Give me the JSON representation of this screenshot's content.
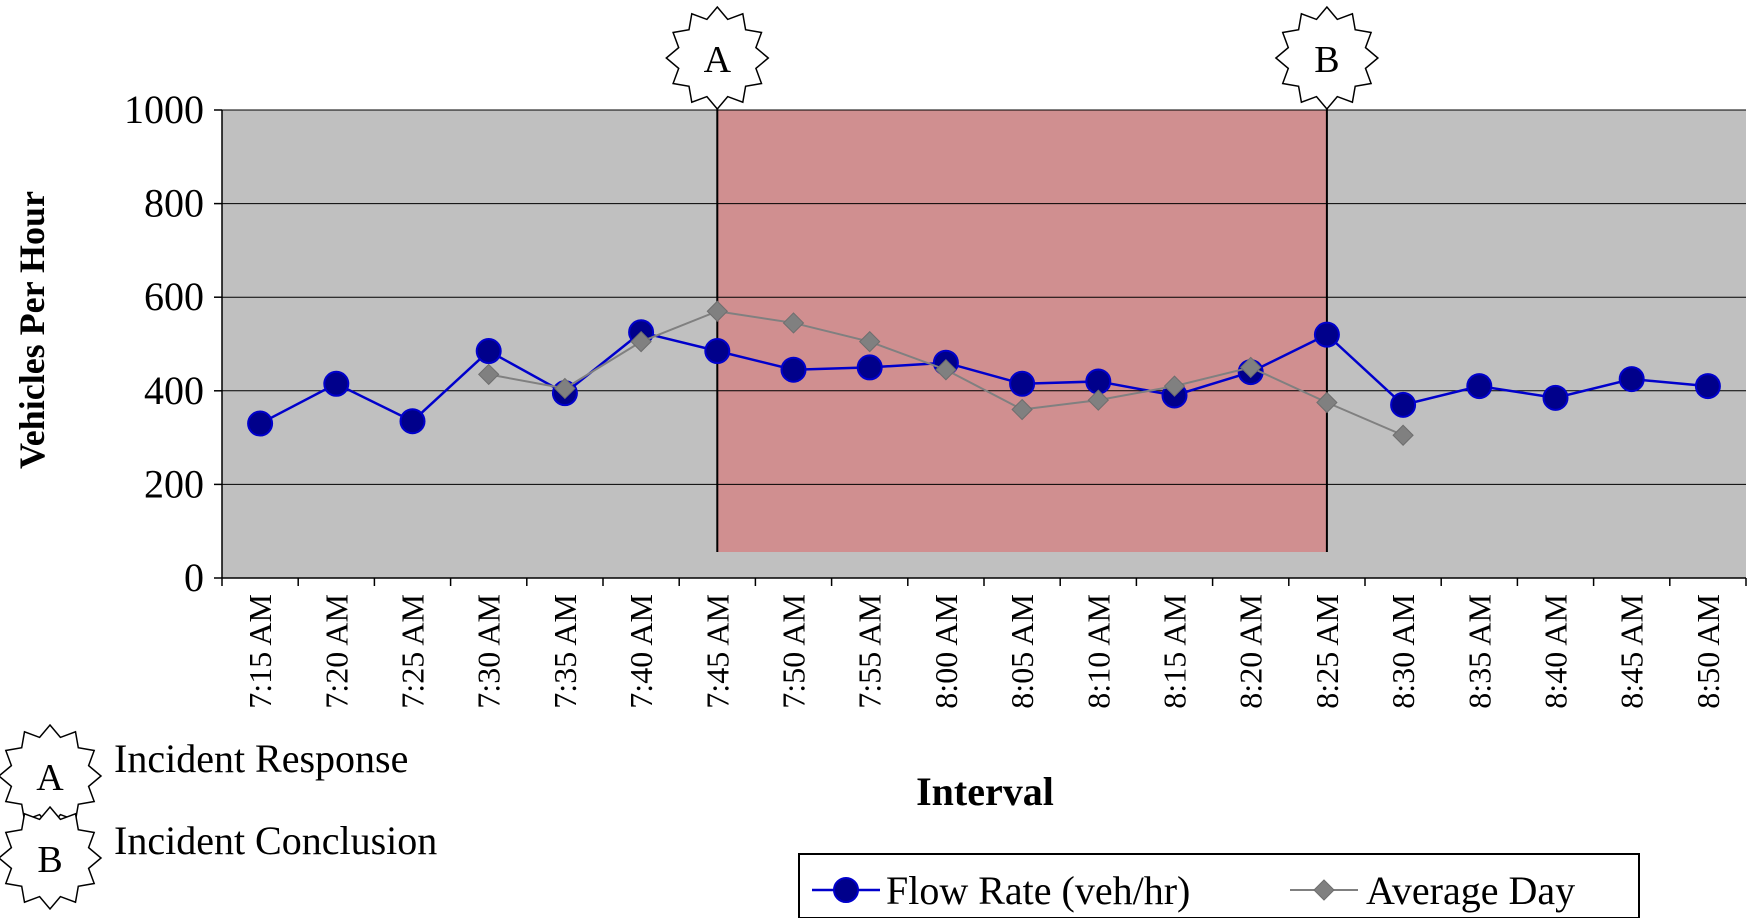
{
  "chart_data": {
    "type": "line",
    "title": "",
    "xlabel": "Interval",
    "ylabel": "Vehicles Per Hour",
    "ylim": [
      0,
      1000
    ],
    "yticks": [
      0,
      200,
      400,
      600,
      800,
      1000
    ],
    "grid": true,
    "categories": [
      "7:15 AM",
      "7:20 AM",
      "7:25 AM",
      "7:30 AM",
      "7:35 AM",
      "7:40 AM",
      "7:45 AM",
      "7:50 AM",
      "7:55 AM",
      "8:00 AM",
      "8:05 AM",
      "8:10 AM",
      "8:15 AM",
      "8:20 AM",
      "8:25 AM",
      "8:30 AM",
      "8:35 AM",
      "8:40 AM",
      "8:45 AM",
      "8:50 AM"
    ],
    "series": [
      {
        "name": "Flow Rate (veh/hr)",
        "color": "#0000cc",
        "marker": "circle",
        "values": [
          330,
          415,
          335,
          485,
          395,
          525,
          485,
          445,
          450,
          460,
          415,
          420,
          390,
          440,
          520,
          370,
          410,
          385,
          425,
          410
        ]
      },
      {
        "name": "Average Day",
        "color": "#808080",
        "marker": "diamond",
        "values": [
          null,
          null,
          null,
          435,
          405,
          505,
          570,
          545,
          505,
          445,
          360,
          380,
          410,
          450,
          375,
          305,
          null,
          null,
          null,
          null
        ]
      }
    ],
    "highlight_region": {
      "from": "7:45 AM",
      "to": "8:25 AM",
      "color": "#d08f90"
    },
    "markers": [
      {
        "label": "A",
        "at": "7:45 AM"
      },
      {
        "label": "B",
        "at": "8:25 AM"
      }
    ],
    "plot_background": "#c0c0c0",
    "legend_position": "bottom-right"
  },
  "annotation_legend": [
    {
      "label": "A",
      "text": "Incident Response"
    },
    {
      "label": "B",
      "text": "Incident Conclusion"
    }
  ]
}
